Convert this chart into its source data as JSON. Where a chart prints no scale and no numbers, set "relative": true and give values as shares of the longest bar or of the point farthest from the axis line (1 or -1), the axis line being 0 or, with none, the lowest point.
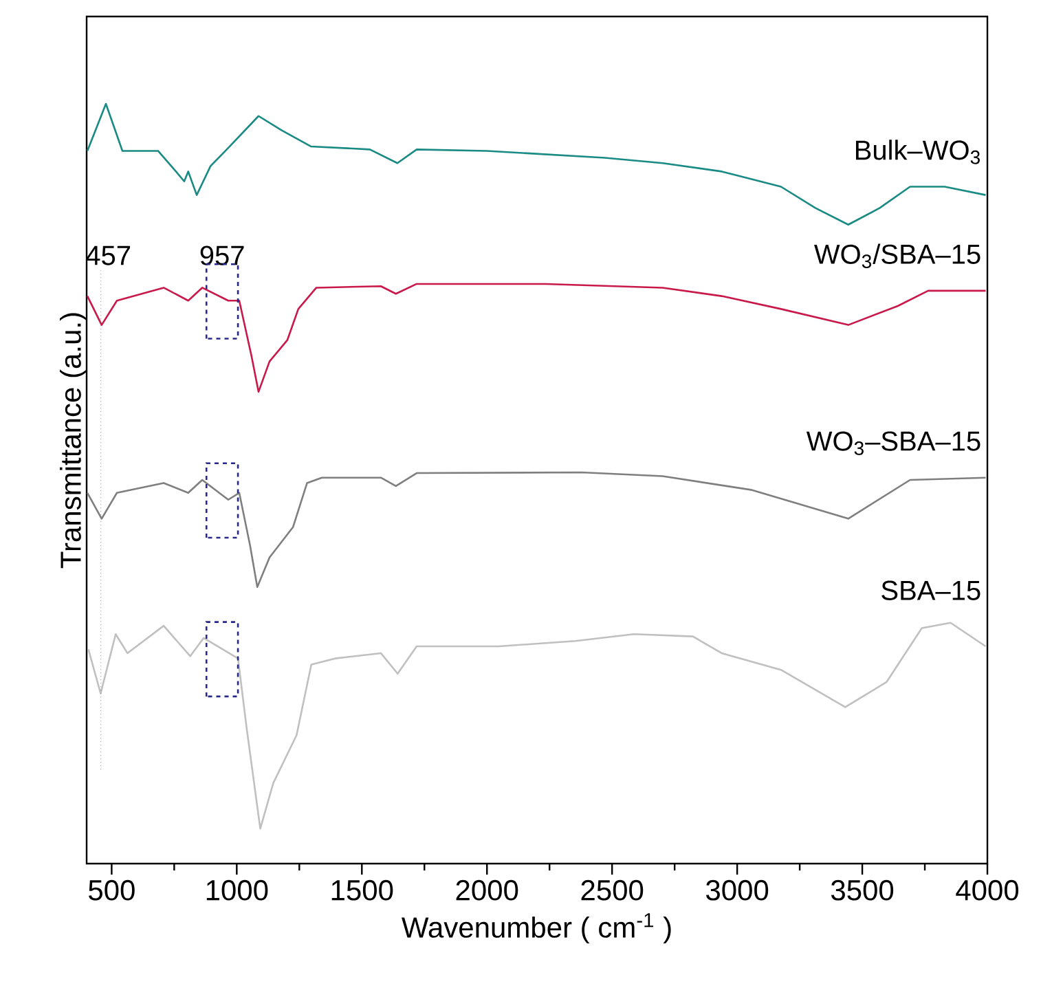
{
  "chart_data": {
    "type": "line",
    "relative": true,
    "xlabel": "Wavenumber ( cm$^{-1}$ )",
    "ylabel": "Transmittance (a.u.)",
    "xlim": [
      400,
      4000
    ],
    "xticks": [
      500,
      1000,
      1500,
      2000,
      2500,
      3000,
      3500,
      4000
    ],
    "grid": false,
    "marker": "none",
    "line_style": "solid",
    "ref_lines": [
      {
        "axis": "x",
        "value": 457,
        "label": "457",
        "line_style": "dotted"
      }
    ],
    "annotations": [
      "957"
    ],
    "series": [
      {
        "name": "Bulk–WO$_{3}$",
        "color": "#1a8a84",
        "x": [
          403,
          477,
          543,
          686,
          757,
          790,
          806,
          840,
          895,
          966,
          1087,
          1180,
          1296,
          1532,
          1642,
          1719,
          2000,
          2471,
          2702,
          2938,
          3175,
          3312,
          3444,
          3570,
          3691,
          3829,
          3993
        ],
        "values": [
          0.938,
          1.0,
          0.938,
          0.938,
          0.911,
          0.898,
          0.911,
          0.88,
          0.918,
          0.942,
          0.984,
          0.965,
          0.944,
          0.94,
          0.922,
          0.94,
          0.938,
          0.929,
          0.922,
          0.911,
          0.891,
          0.863,
          0.841,
          0.863,
          0.891,
          0.891,
          0.88
        ]
      },
      {
        "name": "WO$_{3}$/SBA–15",
        "color": "#c8194a",
        "x": [
          403,
          460,
          521,
          708,
          806,
          862,
          966,
          1010,
          1059,
          1087,
          1131,
          1202,
          1246,
          1318,
          1576,
          1636,
          1719,
          2235,
          2702,
          2938,
          3175,
          3444,
          3642,
          3763,
          3993
        ],
        "values": [
          0.747,
          0.709,
          0.741,
          0.758,
          0.741,
          0.758,
          0.741,
          0.741,
          0.668,
          0.621,
          0.661,
          0.689,
          0.73,
          0.758,
          0.76,
          0.75,
          0.763,
          0.763,
          0.758,
          0.747,
          0.73,
          0.709,
          0.734,
          0.754,
          0.754
        ]
      },
      {
        "name": "WO$_{3}$–SBA–15",
        "color": "#7f7f7f",
        "x": [
          403,
          460,
          521,
          708,
          806,
          862,
          966,
          1010,
          1053,
          1082,
          1131,
          1225,
          1281,
          1340,
          1576,
          1636,
          1719,
          2377,
          2702,
          3055,
          3444,
          3691,
          3993
        ],
        "values": [
          0.488,
          0.454,
          0.488,
          0.501,
          0.488,
          0.505,
          0.479,
          0.488,
          0.419,
          0.364,
          0.403,
          0.443,
          0.501,
          0.508,
          0.508,
          0.497,
          0.514,
          0.515,
          0.51,
          0.492,
          0.454,
          0.505,
          0.508
        ]
      },
      {
        "name": "SBA–15",
        "color": "#c0c0c0",
        "x": [
          407,
          456,
          516,
          563,
          708,
          814,
          868,
          1005,
          1040,
          1094,
          1146,
          1239,
          1298,
          1393,
          1576,
          1643,
          1719,
          2048,
          2353,
          2588,
          2823,
          2938,
          3175,
          3432,
          3597,
          3738,
          3853,
          3993
        ],
        "values": [
          0.282,
          0.224,
          0.302,
          0.277,
          0.313,
          0.273,
          0.297,
          0.27,
          0.177,
          0.046,
          0.106,
          0.169,
          0.262,
          0.27,
          0.277,
          0.25,
          0.286,
          0.286,
          0.293,
          0.302,
          0.299,
          0.277,
          0.255,
          0.206,
          0.239,
          0.31,
          0.317,
          0.286
        ]
      }
    ]
  }
}
